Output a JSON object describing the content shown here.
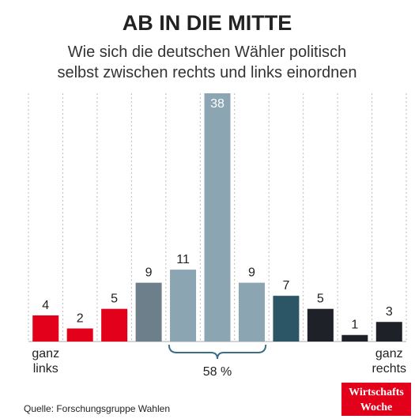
{
  "chart_data": {
    "type": "bar",
    "title": "AB IN DIE MITTE",
    "subtitle": [
      "Wie sich die deutschen Wähler politisch",
      "selbst zwischen rechts und links einordnen"
    ],
    "categories": [
      "ganz links",
      null,
      null,
      null,
      null,
      null,
      null,
      null,
      null,
      null,
      "ganz rechts"
    ],
    "values": [
      4,
      2,
      5,
      9,
      11,
      38,
      9,
      7,
      5,
      1,
      3
    ],
    "colors": [
      "#e3001b",
      "#e3001b",
      "#e3001b",
      "#6e7f8c",
      "#8ba5b3",
      "#8ba5b3",
      "#8ba5b3",
      "#2c5566",
      "#1e2128",
      "#1e2128",
      "#1e2128"
    ],
    "annotation": "58 %",
    "source": "Quelle: Forschungsgruppe Wahlen",
    "logo": [
      "Wirtschafts",
      "Woche"
    ]
  }
}
